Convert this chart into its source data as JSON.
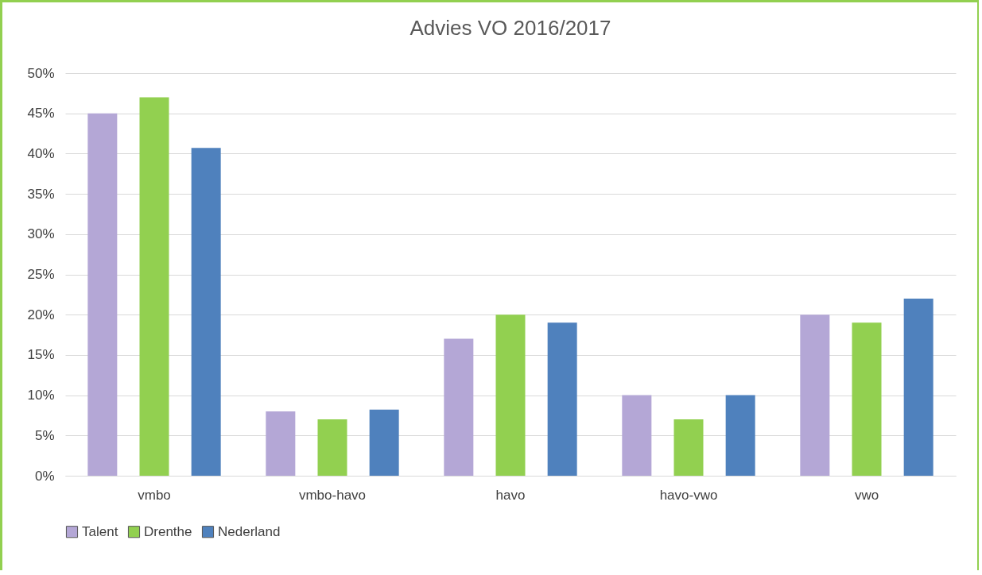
{
  "chart_data": {
    "type": "bar",
    "title": "Advies VO 2016/2017",
    "categories": [
      "vmbo",
      "vmbo-havo",
      "havo",
      "havo-vwo",
      "vwo"
    ],
    "series": [
      {
        "name": "Talent",
        "color": "#b4a7d6",
        "values": [
          45,
          8,
          17,
          10,
          20
        ]
      },
      {
        "name": "Drenthe",
        "color": "#92d050",
        "values": [
          47,
          7,
          20,
          7,
          19
        ]
      },
      {
        "name": "Nederland",
        "color": "#4f81bd",
        "values": [
          40.7,
          8.2,
          19,
          10,
          22
        ]
      }
    ],
    "ylim": [
      0,
      50
    ],
    "yticks": [
      {
        "value": 0,
        "label": "0%"
      },
      {
        "value": 5,
        "label": "5%"
      },
      {
        "value": 10,
        "label": "10%"
      },
      {
        "value": 15,
        "label": "15%"
      },
      {
        "value": 20,
        "label": "20%"
      },
      {
        "value": 25,
        "label": "25%"
      },
      {
        "value": 30,
        "label": "30%"
      },
      {
        "value": 35,
        "label": "35%"
      },
      {
        "value": 40,
        "label": "40%"
      },
      {
        "value": 45,
        "label": "45%"
      },
      {
        "value": 50,
        "label": "50%"
      }
    ],
    "grid": "y",
    "legend": "bottom"
  }
}
